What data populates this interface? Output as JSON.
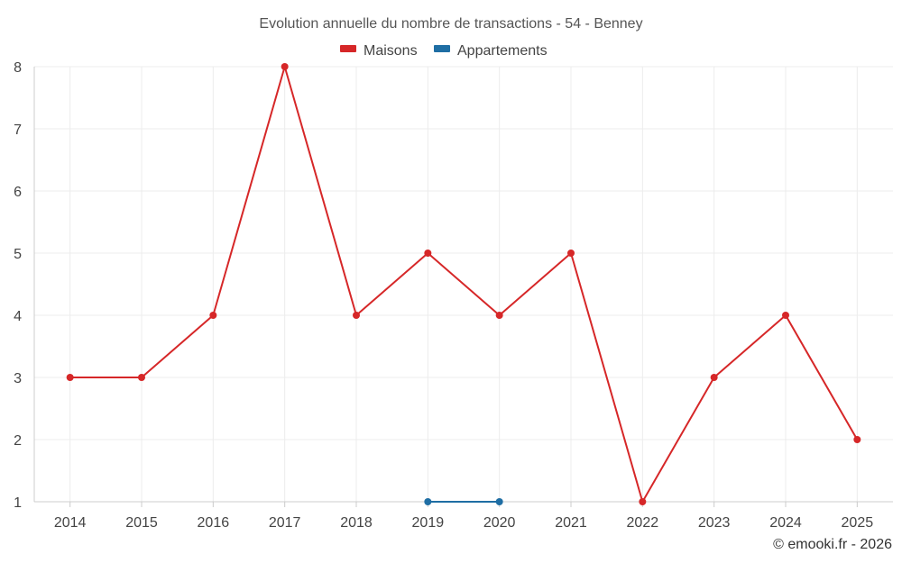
{
  "chart_data": {
    "type": "line",
    "title": "Evolution annuelle du nombre de transactions - 54 - Benney",
    "xlabel": "",
    "ylabel": "",
    "categories": [
      "2014",
      "2015",
      "2016",
      "2017",
      "2018",
      "2019",
      "2020",
      "2021",
      "2022",
      "2023",
      "2024",
      "2025"
    ],
    "ylim": [
      1,
      8
    ],
    "yticks": [
      1,
      2,
      3,
      4,
      5,
      6,
      7,
      8
    ],
    "grid": true,
    "legend_position": "top-center",
    "series": [
      {
        "name": "Maisons",
        "color": "#d62728",
        "values": [
          3,
          3,
          4,
          8,
          4,
          5,
          4,
          5,
          1,
          3,
          4,
          2
        ]
      },
      {
        "name": "Appartements",
        "color": "#1f6ea4",
        "values": [
          null,
          null,
          null,
          null,
          null,
          1,
          1,
          null,
          null,
          null,
          null,
          null
        ]
      }
    ]
  },
  "credit": "© emooki.fr - 2026"
}
